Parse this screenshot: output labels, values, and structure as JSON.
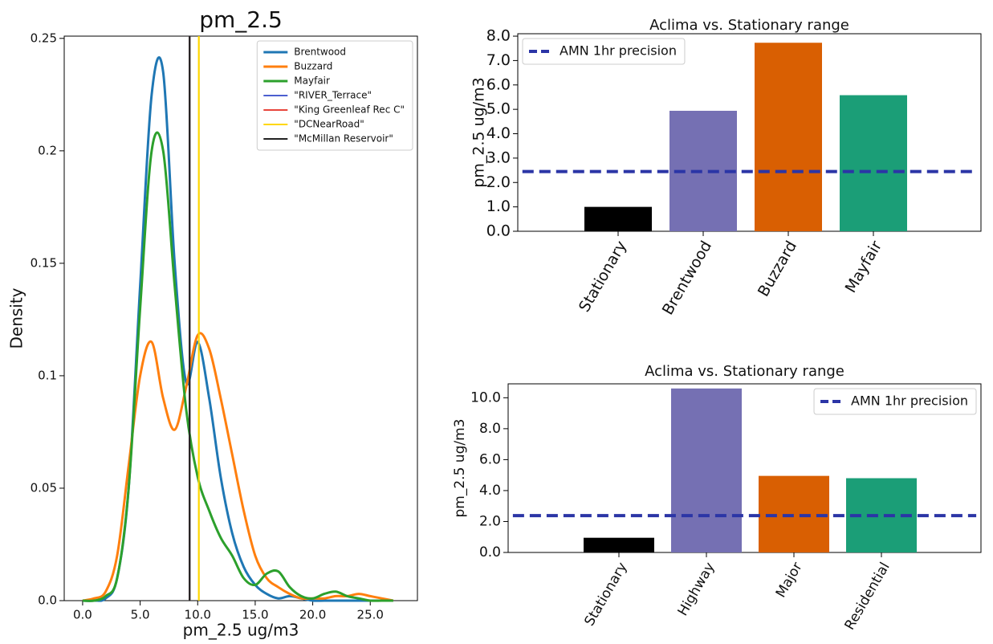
{
  "chart_data": [
    {
      "type": "line",
      "title": "pm_2.5",
      "x_label": "pm_2.5 ug/m3",
      "y_label": "Density",
      "x": [
        0,
        1,
        2,
        3,
        4,
        5,
        6,
        7,
        8,
        9,
        10,
        11,
        12,
        13,
        14,
        15,
        16,
        17,
        18,
        19,
        20,
        21,
        22,
        23,
        24,
        25,
        26,
        27
      ],
      "series": [
        {
          "name": "Brentwood",
          "color": "#1f77b4",
          "values": [
            0,
            0,
            0.001,
            0.01,
            0.05,
            0.14,
            0.225,
            0.235,
            0.15,
            0.097,
            0.115,
            0.09,
            0.055,
            0.03,
            0.015,
            0.007,
            0.003,
            0.001,
            0.002,
            0.001,
            0,
            0,
            0,
            0,
            0,
            0,
            0,
            0
          ]
        },
        {
          "name": "Buzzard",
          "color": "#ff7f0e",
          "values": [
            0,
            0.001,
            0.004,
            0.02,
            0.06,
            0.1,
            0.115,
            0.09,
            0.076,
            0.095,
            0.118,
            0.112,
            0.09,
            0.065,
            0.04,
            0.02,
            0.01,
            0.006,
            0.003,
            0.001,
            0.001,
            0.001,
            0.002,
            0.002,
            0.003,
            0.002,
            0.001,
            0
          ]
        },
        {
          "name": "Mayfair",
          "color": "#2ca02c",
          "values": [
            0,
            0,
            0.002,
            0.01,
            0.05,
            0.13,
            0.2,
            0.2,
            0.14,
            0.085,
            0.055,
            0.04,
            0.028,
            0.02,
            0.01,
            0.007,
            0.012,
            0.013,
            0.006,
            0.002,
            0.001,
            0.003,
            0.004,
            0.002,
            0.001,
            0,
            0,
            0
          ]
        }
      ],
      "vlines": [
        {
          "name": "\"RIVER_Terrace\"",
          "color": "#4c5fd0",
          "x": 9.3
        },
        {
          "name": "\"King Greenleaf Rec C\"",
          "color": "#e8453c",
          "x": 9.3
        },
        {
          "name": "\"DCNearRoad\"",
          "color": "#ffd700",
          "x": 10.1
        },
        {
          "name": "\"McMillan Reservoir\"",
          "color": "#222222",
          "x": 9.3
        }
      ],
      "xlim": [
        -1.6,
        29.1
      ],
      "ylim": [
        0,
        0.251
      ],
      "xticks": [
        {
          "value": 0,
          "label": "0.0"
        },
        {
          "value": 5,
          "label": "5.0"
        },
        {
          "value": 10,
          "label": "10.0"
        },
        {
          "value": 15,
          "label": "15.0"
        },
        {
          "value": 20,
          "label": "20.0"
        },
        {
          "value": 25,
          "label": "25.0"
        }
      ],
      "yticks": [
        {
          "value": 0,
          "label": "0.0"
        },
        0.05,
        0.1,
        0.15,
        0.2,
        0.25
      ],
      "legend": "upper right"
    },
    {
      "type": "bar",
      "title": "Aclima vs. Stationary range",
      "y_label": "pm_2.5 ug/m3",
      "categories": [
        "Stationary",
        "Brentwood",
        "Buzzard",
        "Mayfair"
      ],
      "values": [
        1.0,
        4.94,
        7.73,
        5.58
      ],
      "colors": [
        "#000000",
        "#7570b3",
        "#d95f02",
        "#1b9e77"
      ],
      "reference_line": {
        "name": "AMN 1hr precision",
        "value": 2.45,
        "color": "#2b35a6"
      },
      "ylim": [
        0,
        8.1
      ],
      "yticks": [
        {
          "value": 0,
          "label": "0.0"
        },
        {
          "value": 1,
          "label": "1.0"
        },
        {
          "value": 2,
          "label": "2.0"
        },
        {
          "value": 3,
          "label": "3.0"
        },
        {
          "value": 4,
          "label": "4.0"
        },
        {
          "value": 5,
          "label": "5.0"
        },
        {
          "value": 6,
          "label": "6.0"
        },
        {
          "value": 7,
          "label": "7.0"
        },
        {
          "value": 8,
          "label": "8.0"
        }
      ],
      "legend": "upper left"
    },
    {
      "type": "bar",
      "title": "Aclima vs. Stationary range",
      "y_label": "pm_2.5 ug/m3",
      "categories": [
        "Stationary",
        "Highway",
        "Major",
        "Residential"
      ],
      "values": [
        0.95,
        10.6,
        4.95,
        4.8
      ],
      "colors": [
        "#000000",
        "#7570b3",
        "#d95f02",
        "#1b9e77"
      ],
      "reference_line": {
        "name": "AMN 1hr precision",
        "value": 2.38,
        "color": "#2b35a6"
      },
      "ylim": [
        0,
        10.9
      ],
      "yticks": [
        {
          "value": 0,
          "label": "0.0"
        },
        {
          "value": 2,
          "label": "2.0"
        },
        {
          "value": 4,
          "label": "4.0"
        },
        {
          "value": 6,
          "label": "6.0"
        },
        {
          "value": 8,
          "label": "8.0"
        },
        {
          "value": 10,
          "label": "10.0"
        }
      ],
      "legend": "upper right"
    }
  ]
}
